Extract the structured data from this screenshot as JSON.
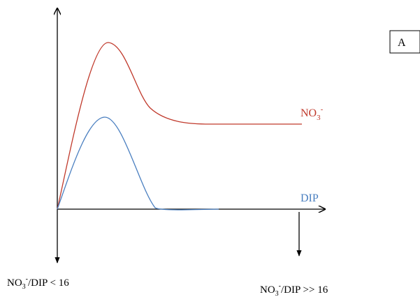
{
  "panel": {
    "label": "A"
  },
  "series": [
    {
      "name": "NO",
      "sub": "3",
      "sup": "-",
      "color": "#c0392b"
    },
    {
      "name": "DIP",
      "color": "#4a7fc0"
    }
  ],
  "annotations": {
    "left": {
      "pre": "NO",
      "sub": "3",
      "sup": "-",
      "post": "/DIP < 16"
    },
    "right": {
      "pre": "NO",
      "sub": "3",
      "sup": "-",
      "post": "/DIP >> 16"
    }
  },
  "colors": {
    "axis": "#000000",
    "no3": "#c0392b",
    "dip": "#4a7fc0"
  }
}
